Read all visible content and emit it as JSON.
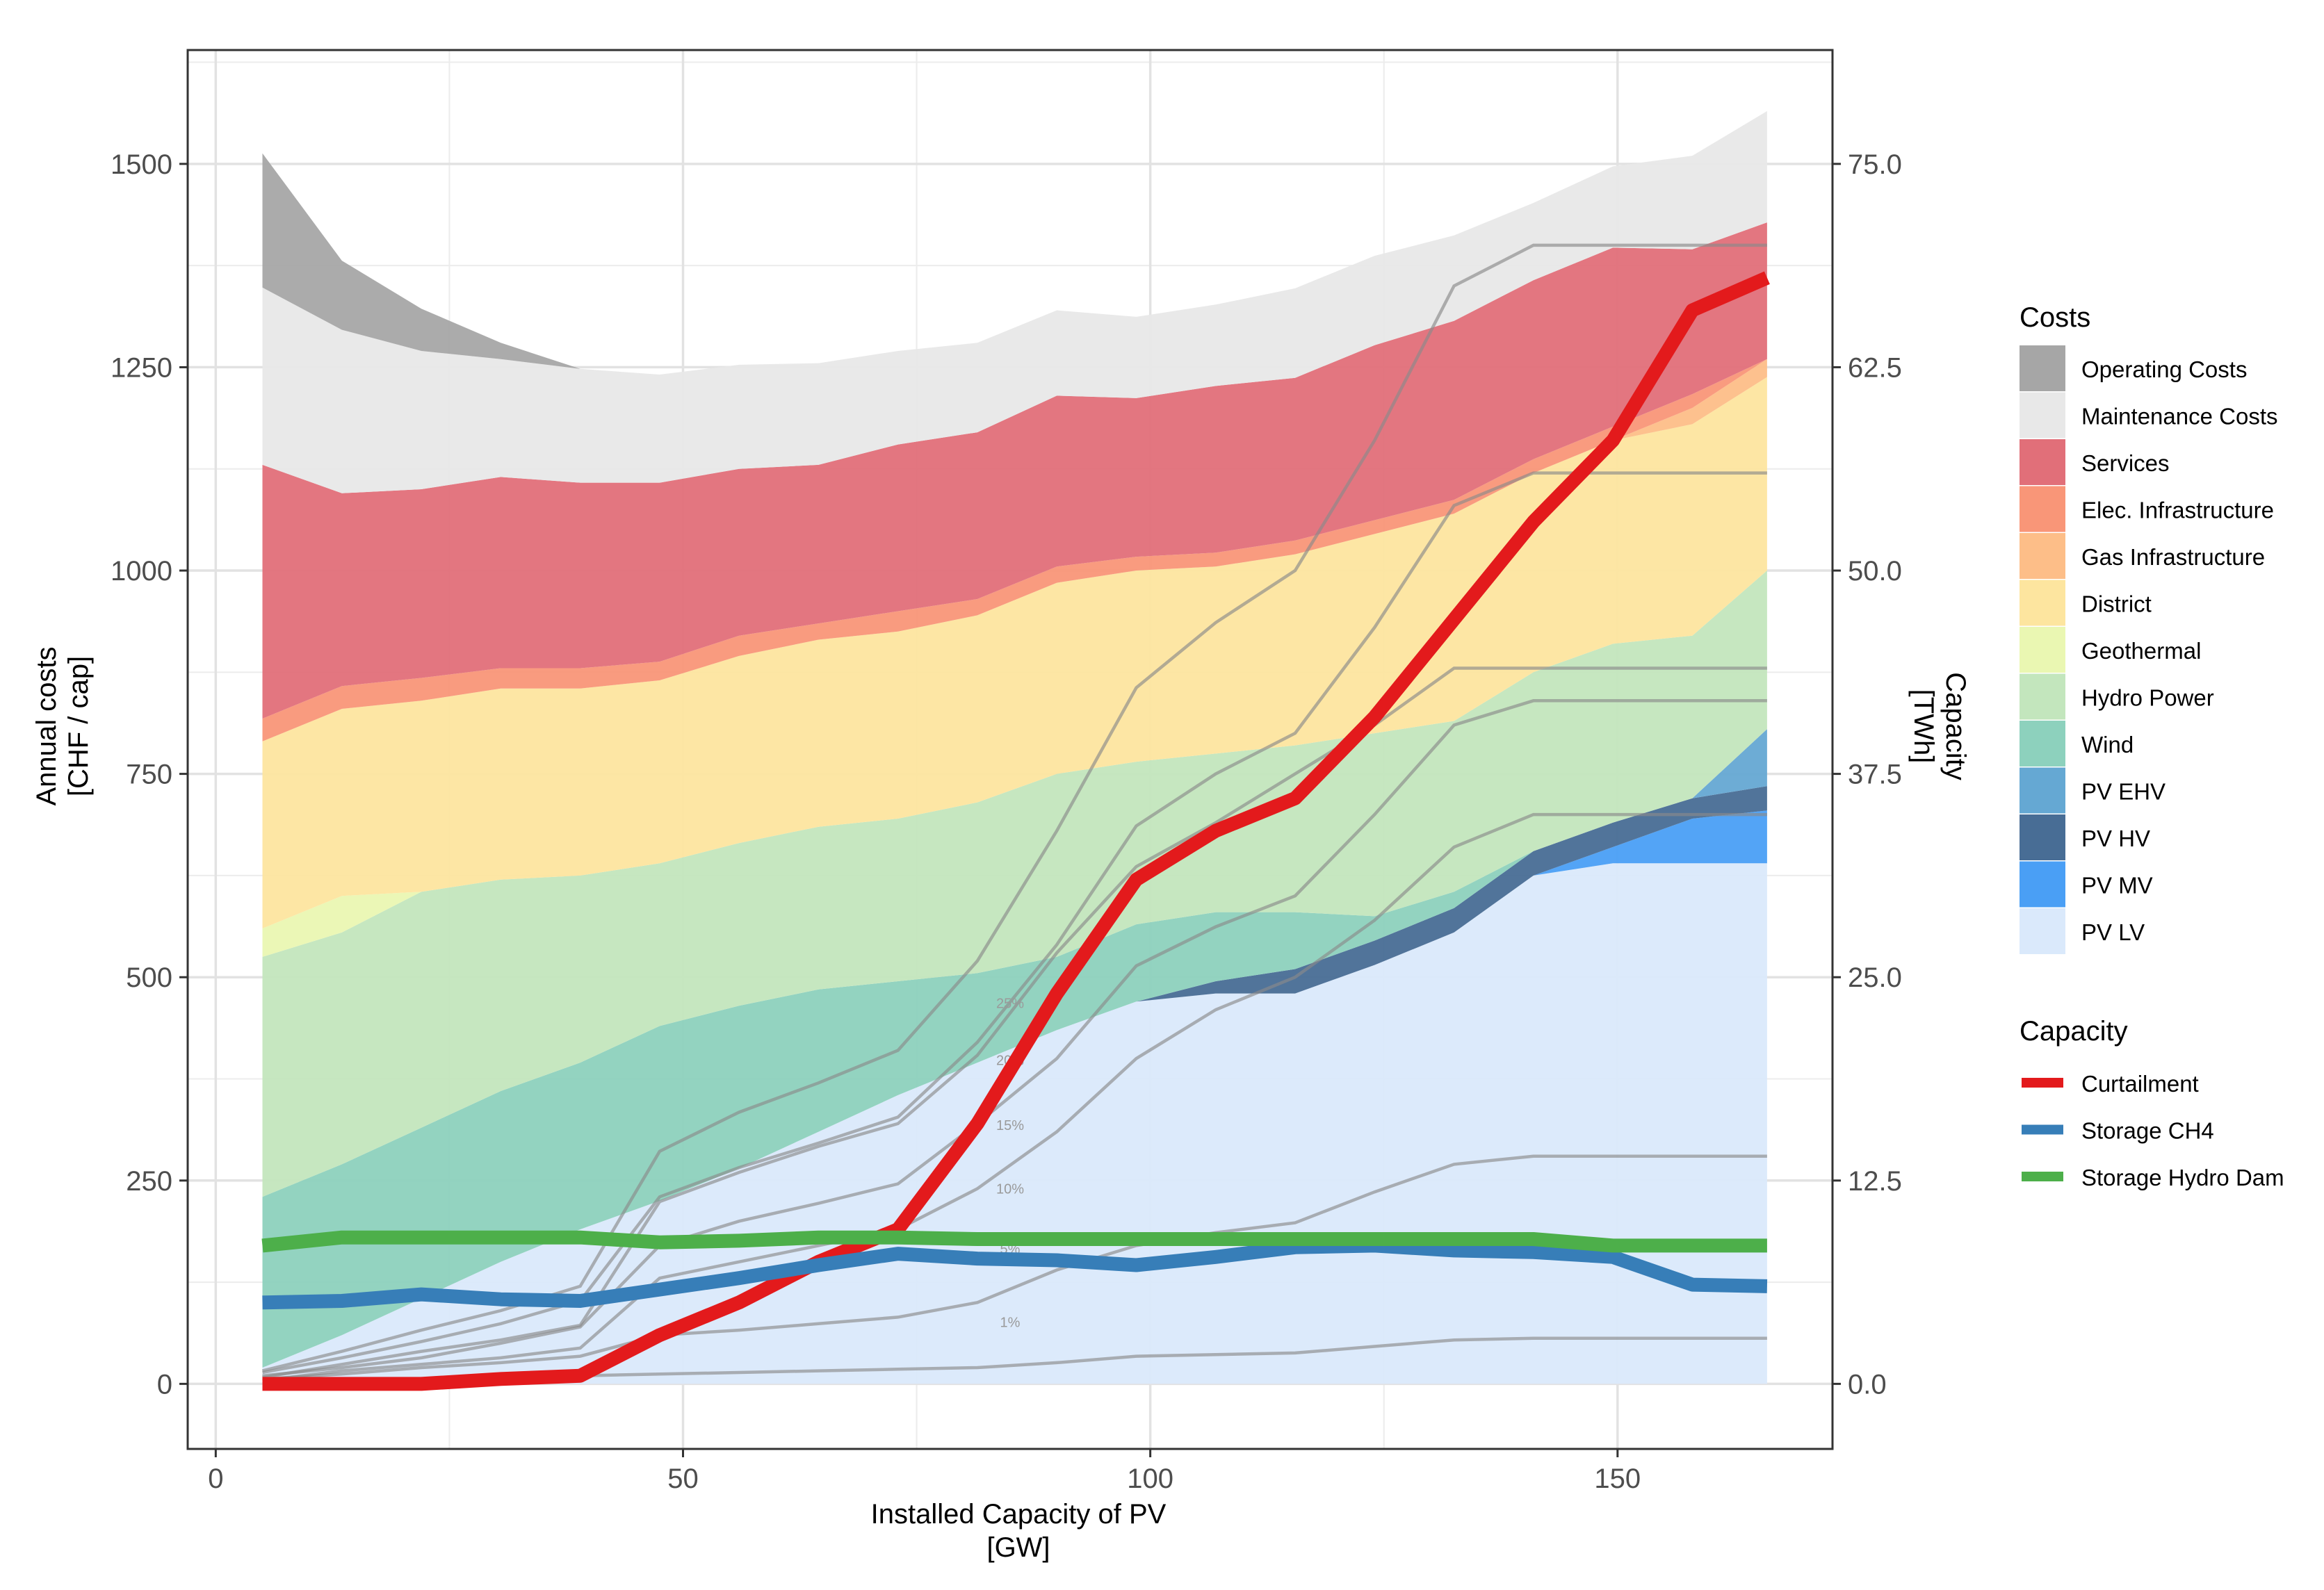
{
  "chart_data": {
    "type": "area",
    "title": "",
    "xlabel": "Installed Capacity of PV",
    "xlabel_unit": "[GW]",
    "ylabel": "Annual costs",
    "ylabel_unit": "[CHF / cap]",
    "y2label": "Capacity",
    "y2label_unit": "[TWh]",
    "xlim": [
      -3,
      173
    ],
    "ylim": [
      -80,
      1640
    ],
    "y2lim": [
      -4,
      82
    ],
    "xticks": [
      0,
      50,
      100,
      150
    ],
    "yticks": [
      0,
      250,
      500,
      750,
      1000,
      1250,
      1500
    ],
    "y2ticks": [
      "0.0",
      "12.5",
      "25.0",
      "37.5",
      "50.0",
      "62.5",
      "75.0"
    ],
    "y2tick_values": [
      0,
      12.5,
      25,
      37.5,
      50,
      62.5,
      75
    ],
    "grid": true,
    "x": [
      5,
      13.5,
      22,
      30.5,
      39,
      47.5,
      56,
      64.5,
      73,
      81.5,
      90,
      98.5,
      107,
      115.5,
      124,
      132.5,
      141,
      149.5,
      158,
      166
    ],
    "stacked_series": [
      {
        "name": "PV LV",
        "color": "#dae9fb",
        "values": [
          20,
          60,
          105,
          150,
          190,
          225,
          265,
          310,
          355,
          395,
          435,
          470,
          480,
          480,
          515,
          555,
          625,
          640,
          640,
          640
        ]
      },
      {
        "name": "PV MV",
        "color": "#4a9ff5",
        "values": [
          0,
          0,
          0,
          0,
          0,
          0,
          0,
          0,
          0,
          0,
          0,
          0,
          0,
          0,
          0,
          0,
          0,
          20,
          55,
          65
        ]
      },
      {
        "name": "PV HV",
        "color": "#486d95",
        "values": [
          0,
          0,
          0,
          0,
          0,
          0,
          0,
          0,
          0,
          0,
          0,
          0,
          15,
          30,
          30,
          30,
          30,
          30,
          25,
          30
        ]
      },
      {
        "name": "PV EHV",
        "color": "#65a8d3",
        "values": [
          0,
          0,
          0,
          0,
          0,
          0,
          0,
          0,
          0,
          0,
          0,
          0,
          0,
          0,
          0,
          0,
          0,
          0,
          0,
          70
        ]
      },
      {
        "name": "Wind",
        "color": "#8dd1bd",
        "values": [
          210,
          210,
          210,
          210,
          205,
          215,
          200,
          175,
          140,
          110,
          90,
          95,
          85,
          70,
          30,
          20,
          0,
          0,
          0,
          0
        ]
      },
      {
        "name": "Hydro Power",
        "color": "#c3e6bd",
        "values": [
          295,
          285,
          290,
          260,
          230,
          200,
          200,
          200,
          200,
          210,
          225,
          200,
          195,
          205,
          225,
          210,
          220,
          220,
          200,
          195
        ]
      },
      {
        "name": "Geothermal",
        "color": "#eaf7b2",
        "values": [
          35,
          45,
          0,
          0,
          0,
          0,
          0,
          0,
          0,
          0,
          0,
          0,
          0,
          0,
          0,
          0,
          0,
          0,
          0,
          0
        ]
      },
      {
        "name": "District",
        "color": "#fde59f",
        "values": [
          230,
          230,
          235,
          235,
          230,
          225,
          230,
          230,
          230,
          230,
          235,
          235,
          230,
          235,
          245,
          255,
          245,
          250,
          260,
          238
        ]
      },
      {
        "name": "Gas Infrastructure",
        "color": "#fdbe88",
        "values": [
          0,
          0,
          0,
          0,
          0,
          0,
          0,
          0,
          0,
          0,
          0,
          0,
          0,
          0,
          0,
          0,
          0,
          0,
          20,
          22
        ]
      },
      {
        "name": "Elec. Infrastructure",
        "color": "#f99678",
        "values": [
          28,
          28,
          28,
          25,
          25,
          23,
          25,
          20,
          25,
          20,
          20,
          17,
          17,
          17,
          17,
          17,
          17,
          17,
          17,
          0
        ]
      },
      {
        "name": "Services",
        "color": "#e16f79",
        "values": [
          312,
          237,
          232,
          235,
          228,
          220,
          205,
          195,
          205,
          205,
          210,
          195,
          205,
          200,
          215,
          220,
          220,
          220,
          178,
          168
        ]
      },
      {
        "name": "Maintenance Costs",
        "color": "#e8e8e8",
        "values": [
          218,
          201,
          170,
          145,
          140,
          133,
          128,
          125,
          115,
          110,
          105,
          100,
          100,
          110,
          110,
          105,
          95,
          100,
          115,
          137
        ]
      },
      {
        "name": "Operating Costs",
        "color": "#a6a6a6",
        "values": [
          165,
          85,
          52,
          20,
          0,
          0,
          0,
          0,
          0,
          0,
          0,
          0,
          0,
          0,
          0,
          0,
          0,
          0,
          0,
          0
        ]
      }
    ],
    "capacity_series": [
      {
        "name": "Curtailment",
        "color": "#e31a1c",
        "values": [
          0,
          0,
          0,
          0.3,
          0.5,
          3,
          5,
          7.5,
          9.5,
          16,
          24,
          31,
          34,
          36,
          41,
          47,
          53,
          58,
          66,
          68
        ]
      },
      {
        "name": "Storage CH4",
        "color": "#377eb8",
        "values": [
          5,
          5.1,
          5.5,
          5.2,
          5.1,
          5.8,
          6.5,
          7.3,
          8,
          7.7,
          7.6,
          7.3,
          7.8,
          8.4,
          8.5,
          8.2,
          8.1,
          7.8,
          6.1,
          6
        ]
      },
      {
        "name": "Storage Hydro Dam",
        "color": "#4daf4a",
        "values": [
          8.5,
          9,
          9,
          9,
          9,
          8.7,
          8.8,
          9,
          9,
          8.9,
          8.9,
          8.9,
          8.9,
          8.9,
          8.9,
          8.9,
          8.9,
          8.5,
          8.5,
          8.5
        ]
      }
    ],
    "reference_lines": [
      {
        "label": "1%",
        "values": [
          0,
          0.2,
          0.3,
          0.4,
          0.5,
          0.6,
          0.7,
          0.8,
          0.9,
          1,
          1.3,
          1.7,
          1.8,
          1.9,
          2.3,
          2.7,
          2.8,
          2.8,
          2.8,
          2.8
        ]
      },
      {
        "label": "5%",
        "values": [
          0.3,
          0.6,
          1,
          1.3,
          1.7,
          3,
          3.3,
          3.7,
          4.1,
          5,
          7,
          8.5,
          9.3,
          9.9,
          11.8,
          13.5,
          14,
          14,
          14,
          14
        ]
      },
      {
        "label": "10%",
        "values": [
          0.5,
          1,
          1.6,
          2.5,
          3.5,
          8.5,
          10,
          11.1,
          12.3,
          16,
          20,
          25.7,
          28.1,
          30,
          35,
          40.5,
          42,
          42,
          42,
          42
        ]
      },
      {
        "label": "15%",
        "values": [
          0.7,
          1.6,
          2.6,
          3.7,
          5.1,
          11.5,
          13.3,
          14.8,
          16.4,
          21,
          27,
          34.3,
          37.5,
          40,
          46.5,
          54,
          56,
          56,
          56,
          56
        ]
      },
      {
        "label": "20%",
        "values": [
          0.8,
          2,
          3.3,
          4.5,
          6,
          14.3,
          16.7,
          18.5,
          20.5,
          26,
          34,
          42.8,
          46.8,
          50,
          58,
          67.5,
          70,
          70,
          70,
          70
        ]
      },
      {
        "label": "",
        "values": [
          0.4,
          1.2,
          2.0,
          2.7,
          3.6,
          11.2,
          13.0,
          14.6,
          16.0,
          20.2,
          26.5,
          31.8,
          34.5,
          37.5,
          40.5,
          44,
          44,
          44,
          44,
          44
        ]
      },
      {
        "label": "",
        "values": [
          0.2,
          0.8,
          1.2,
          1.6,
          2.2,
          6.5,
          7.5,
          8.5,
          9.5,
          12,
          15.5,
          20,
          23,
          25,
          28.5,
          33,
          35,
          35,
          35,
          35
        ]
      }
    ],
    "reference_line_color": "#8a8a8a",
    "reference_labels": [
      {
        "text": "25%",
        "x": 85,
        "y": 23.1
      },
      {
        "text": "20%",
        "x": 85,
        "y": 19.6
      },
      {
        "text": "15%",
        "x": 85,
        "y": 15.6
      },
      {
        "text": "10%",
        "x": 85,
        "y": 11.7
      },
      {
        "text": "5%",
        "x": 85,
        "y": 8
      },
      {
        "text": "1%",
        "x": 85,
        "y": 3.5
      }
    ],
    "legend": {
      "position": "right",
      "costs_title": "Costs",
      "costs_items": [
        "Operating Costs",
        "Maintenance Costs",
        "Services",
        "Elec. Infrastructure",
        "Gas Infrastructure",
        "District",
        "Geothermal",
        "Hydro Power",
        "Wind",
        "PV EHV",
        "PV HV",
        "PV MV",
        "PV LV"
      ],
      "capacity_title": "Capacity",
      "capacity_items": [
        "Curtailment",
        "Storage CH4",
        "Storage Hydro Dam"
      ]
    }
  }
}
